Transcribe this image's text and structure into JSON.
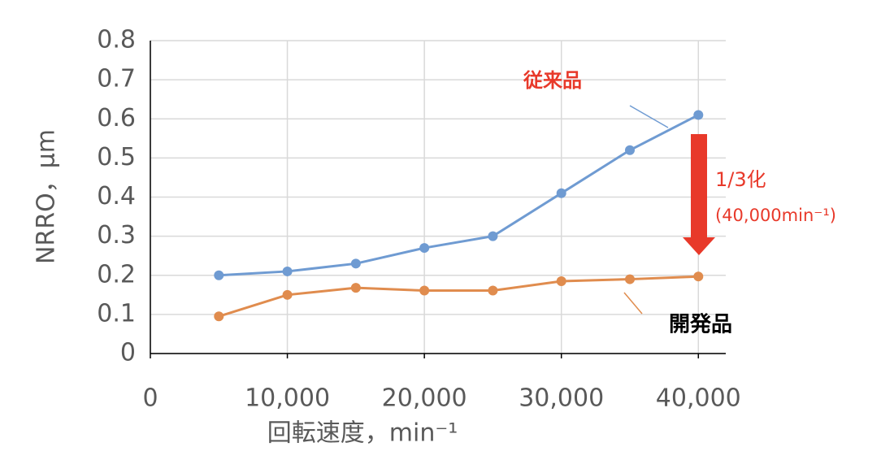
{
  "chart_data": {
    "type": "line",
    "x": [
      5000,
      10000,
      15000,
      20000,
      25000,
      30000,
      35000,
      40000
    ],
    "series": [
      {
        "name": "従来品",
        "color": "#6f9bd2",
        "values": [
          0.2,
          0.21,
          0.23,
          0.27,
          0.3,
          0.41,
          0.52,
          0.61
        ]
      },
      {
        "name": "開発品",
        "color": "#e08c4e",
        "values": [
          0.095,
          0.15,
          0.168,
          0.161,
          0.161,
          0.185,
          0.19,
          0.197
        ]
      }
    ],
    "xlabel": "回転速度，min⁻¹",
    "ylabel": "NRRO，μm",
    "xlim": [
      0,
      42000
    ],
    "xticks": [
      0,
      {
        "value": 10000,
        "label": "10,000"
      },
      {
        "value": 20000,
        "label": "20,000"
      },
      {
        "value": 30000,
        "label": "30,000"
      },
      {
        "value": 40000,
        "label": "40,000"
      }
    ],
    "ylim": [
      0,
      0.8
    ],
    "yticks": [
      0,
      0.1,
      0.2,
      0.3,
      0.4,
      0.5,
      0.6,
      0.7,
      0.8
    ],
    "grid": true,
    "annotations": [
      "1/3化",
      "(40,000min⁻¹)"
    ]
  }
}
